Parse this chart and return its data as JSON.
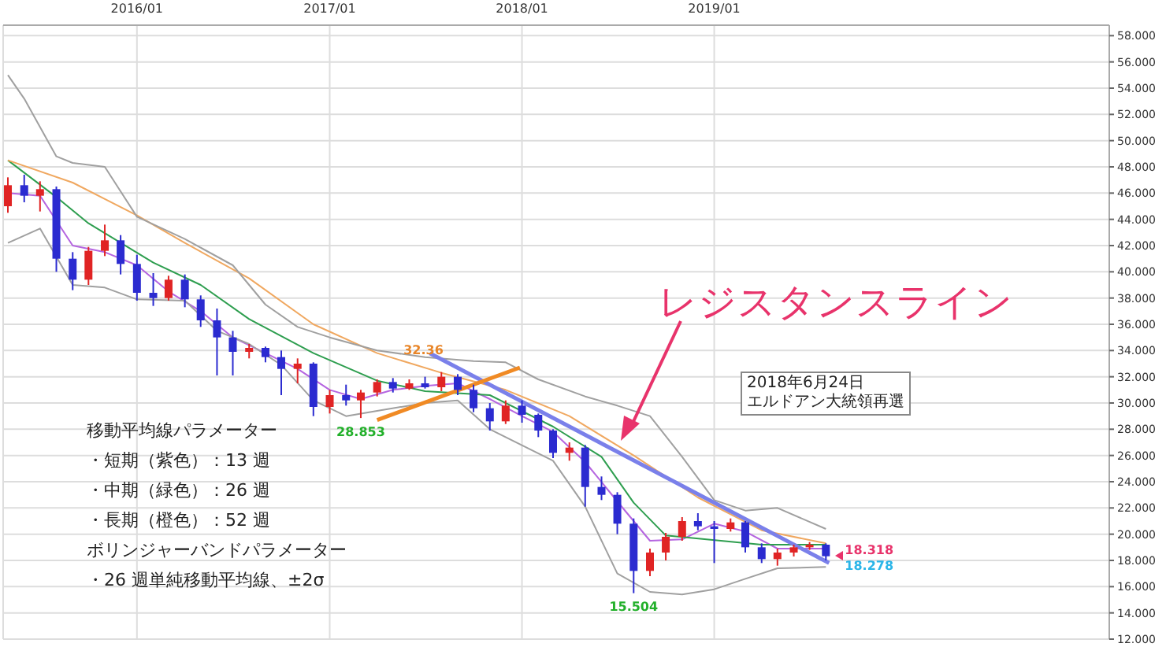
{
  "chart_data": {
    "type": "candlestick",
    "x": [
      "2015-05",
      "2015-06",
      "2015-07",
      "2015-08",
      "2015-09",
      "2015-10",
      "2015-11",
      "2015-12",
      "2016-01",
      "2016-02",
      "2016-03",
      "2016-04",
      "2016-05",
      "2016-06",
      "2016-07",
      "2016-08",
      "2016-09",
      "2016-10",
      "2016-11",
      "2016-12",
      "2017-01",
      "2017-02",
      "2017-03",
      "2017-04",
      "2017-05",
      "2017-06",
      "2017-07",
      "2017-08",
      "2017-09",
      "2017-10",
      "2017-11",
      "2017-12",
      "2018-01",
      "2018-02",
      "2018-03",
      "2018-04",
      "2018-05",
      "2018-06",
      "2018-07",
      "2018-08",
      "2018-09",
      "2018-10",
      "2018-11",
      "2018-12",
      "2019-01",
      "2019-02",
      "2019-03",
      "2019-04",
      "2019-05",
      "2019-06",
      "2019-07",
      "2019-08"
    ],
    "ohlc": [
      [
        45.0,
        47.2,
        44.5,
        46.6
      ],
      [
        46.6,
        47.4,
        45.3,
        45.8
      ],
      [
        45.8,
        46.9,
        44.6,
        46.3
      ],
      [
        46.3,
        46.5,
        40.0,
        41.0
      ],
      [
        41.0,
        41.5,
        38.6,
        39.4
      ],
      [
        39.4,
        41.9,
        39.0,
        41.6
      ],
      [
        41.6,
        43.6,
        41.2,
        42.4
      ],
      [
        42.4,
        42.8,
        39.8,
        40.6
      ],
      [
        40.6,
        41.3,
        37.8,
        38.4
      ],
      [
        38.4,
        39.9,
        37.4,
        38.0
      ],
      [
        38.0,
        39.7,
        37.8,
        39.4
      ],
      [
        39.4,
        39.8,
        37.3,
        37.9
      ],
      [
        37.9,
        38.2,
        35.8,
        36.3
      ],
      [
        36.3,
        37.2,
        32.1,
        35.0
      ],
      [
        35.0,
        35.5,
        32.1,
        33.9
      ],
      [
        33.9,
        34.5,
        33.4,
        34.2
      ],
      [
        34.2,
        34.3,
        33.1,
        33.5
      ],
      [
        33.5,
        34.0,
        30.6,
        32.6
      ],
      [
        32.6,
        33.4,
        31.5,
        33.0
      ],
      [
        33.0,
        33.1,
        29.0,
        29.7
      ],
      [
        29.7,
        31.0,
        29.2,
        30.6
      ],
      [
        30.6,
        31.4,
        29.8,
        30.2
      ],
      [
        30.2,
        31.0,
        28.853,
        30.8
      ],
      [
        30.8,
        31.8,
        30.5,
        31.6
      ],
      [
        31.6,
        31.9,
        30.8,
        31.1
      ],
      [
        31.1,
        31.8,
        31.0,
        31.5
      ],
      [
        31.5,
        32.0,
        31.1,
        31.2
      ],
      [
        31.2,
        32.36,
        30.9,
        32.0
      ],
      [
        32.0,
        32.2,
        30.6,
        31.0
      ],
      [
        31.0,
        31.4,
        29.3,
        29.6
      ],
      [
        29.6,
        30.0,
        27.9,
        28.6
      ],
      [
        28.6,
        30.2,
        28.4,
        29.8
      ],
      [
        29.8,
        30.2,
        28.5,
        29.1
      ],
      [
        29.1,
        29.2,
        27.4,
        27.9
      ],
      [
        27.9,
        28.0,
        25.8,
        26.2
      ],
      [
        26.2,
        27.0,
        25.6,
        26.6
      ],
      [
        26.6,
        26.8,
        22.1,
        23.6
      ],
      [
        23.6,
        24.4,
        22.6,
        23.0
      ],
      [
        23.0,
        23.2,
        20.0,
        20.8
      ],
      [
        20.8,
        21.2,
        15.504,
        17.2
      ],
      [
        17.2,
        18.9,
        16.8,
        18.6
      ],
      [
        18.6,
        20.1,
        18.0,
        19.8
      ],
      [
        19.8,
        21.3,
        19.5,
        21.0
      ],
      [
        21.0,
        21.6,
        20.3,
        20.6
      ],
      [
        20.6,
        21.0,
        17.8,
        20.4
      ],
      [
        20.4,
        21.2,
        20.2,
        20.9
      ],
      [
        20.9,
        21.0,
        18.6,
        19.0
      ],
      [
        19.0,
        19.3,
        17.8,
        18.1
      ],
      [
        18.1,
        18.9,
        17.6,
        18.6
      ],
      [
        18.6,
        19.2,
        18.3,
        19.0
      ],
      [
        19.0,
        19.4,
        18.8,
        19.2
      ],
      [
        19.2,
        19.3,
        18.0,
        18.318
      ]
    ],
    "colors": [
      "#e02424",
      "#2b2bd0",
      "#e02424",
      "#2b2bd0",
      "#2b2bd0",
      "#e02424",
      "#e02424",
      "#2b2bd0",
      "#2b2bd0",
      "#2b2bd0",
      "#e02424",
      "#2b2bd0",
      "#2b2bd0",
      "#2b2bd0",
      "#2b2bd0",
      "#e02424",
      "#2b2bd0",
      "#2b2bd0",
      "#e02424",
      "#2b2bd0",
      "#e02424",
      "#2b2bd0",
      "#e02424",
      "#e02424",
      "#2b2bd0",
      "#e02424",
      "#2b2bd0",
      "#e02424",
      "#2b2bd0",
      "#2b2bd0",
      "#2b2bd0",
      "#e02424",
      "#2b2bd0",
      "#2b2bd0",
      "#2b2bd0",
      "#e02424",
      "#2b2bd0",
      "#2b2bd0",
      "#2b2bd0",
      "#2b2bd0",
      "#e02424",
      "#e02424",
      "#e02424",
      "#2b2bd0",
      "#2b2bd0",
      "#e02424",
      "#2b2bd0",
      "#2b2bd0",
      "#e02424",
      "#e02424",
      "#e02424",
      "#2b2bd0"
    ],
    "series": [
      {
        "type": "line",
        "color": "#b565e0",
        "x": [
          "2015-05",
          "2015-07",
          "2015-09",
          "2015-11",
          "2016-01",
          "2016-03",
          "2016-05",
          "2016-07",
          "2016-09",
          "2016-11",
          "2017-01",
          "2017-03",
          "2017-05",
          "2017-07",
          "2017-09",
          "2017-11",
          "2018-01",
          "2018-03",
          "2018-05",
          "2018-07",
          "2018-09",
          "2018-11",
          "2019-01",
          "2019-03",
          "2019-05",
          "2019-08"
        ],
        "values": [
          46.0,
          45.8,
          42.0,
          41.5,
          40.5,
          38.5,
          37.0,
          35.0,
          33.8,
          32.6,
          31.0,
          30.3,
          31.0,
          31.3,
          31.5,
          30.3,
          29.0,
          27.8,
          25.5,
          22.5,
          19.5,
          19.6,
          20.8,
          20.2,
          18.9,
          18.9
        ]
      },
      {
        "type": "line",
        "color": "#2e9e4f",
        "x": [
          "2015-05",
          "2015-08",
          "2015-10",
          "2016-02",
          "2016-05",
          "2016-08",
          "2016-12",
          "2017-04",
          "2017-07",
          "2017-11",
          "2018-03",
          "2018-06",
          "2018-08",
          "2018-10",
          "2019-04",
          "2019-08"
        ],
        "values": [
          48.5,
          45.7,
          43.7,
          40.7,
          39.0,
          36.4,
          33.8,
          31.7,
          30.9,
          30.6,
          28.2,
          25.9,
          22.4,
          19.9,
          19.2,
          19.2
        ]
      },
      {
        "type": "line",
        "color": "#f0a860",
        "x": [
          "2015-05",
          "2015-09",
          "2016-01",
          "2016-04",
          "2016-08",
          "2016-12",
          "2017-04",
          "2017-08",
          "2017-12",
          "2018-04",
          "2018-08",
          "2018-12",
          "2019-04",
          "2019-08"
        ],
        "values": [
          48.5,
          46.8,
          44.3,
          42.2,
          39.5,
          36.0,
          33.8,
          32.3,
          31.0,
          29.0,
          26.0,
          22.8,
          20.3,
          19.3
        ]
      },
      {
        "type": "line",
        "color": "#a0a0a0",
        "x": [
          "2015-05",
          "2015-06",
          "2015-08",
          "2015-09",
          "2015-11",
          "2016-01",
          "2016-04",
          "2016-07",
          "2016-09",
          "2016-11",
          "2017-01",
          "2017-04",
          "2017-07",
          "2017-10",
          "2017-12",
          "2018-02",
          "2018-05",
          "2018-07",
          "2018-09",
          "2018-11",
          "2019-01",
          "2019-03",
          "2019-05",
          "2019-08"
        ],
        "values": [
          55.0,
          53.2,
          48.8,
          48.3,
          48.0,
          44.2,
          42.5,
          40.5,
          37.5,
          35.8,
          35.0,
          34.0,
          33.5,
          33.2,
          33.1,
          31.8,
          30.5,
          29.8,
          29.0,
          25.9,
          22.6,
          21.8,
          22.0,
          20.4
        ]
      },
      {
        "type": "line",
        "color": "#a0a0a0",
        "x": [
          "2015-05",
          "2015-07",
          "2015-09",
          "2015-11",
          "2016-01",
          "2016-04",
          "2016-06",
          "2016-08",
          "2016-10",
          "2016-12",
          "2017-02",
          "2017-04",
          "2017-07",
          "2017-09",
          "2017-11",
          "2018-03",
          "2018-05",
          "2018-07",
          "2018-09",
          "2018-11",
          "2019-01",
          "2019-03",
          "2019-05",
          "2019-08"
        ],
        "values": [
          42.2,
          43.3,
          39.0,
          38.8,
          37.9,
          37.8,
          35.5,
          34.5,
          32.9,
          30.2,
          29.0,
          29.4,
          30.0,
          30.2,
          28.0,
          25.6,
          22.1,
          17.0,
          15.6,
          15.4,
          15.8,
          16.6,
          17.4,
          17.5
        ]
      },
      {
        "type": "line",
        "color": "#7a80ea",
        "x": [
          "2017-07-10",
          "2019-08-07"
        ],
        "values": [
          33.8,
          17.8
        ]
      },
      {
        "type": "line",
        "color": "#f08a24",
        "x": [
          "2017-04-01",
          "2017-12-28"
        ],
        "values": [
          28.7,
          32.7
        ]
      }
    ],
    "xlim": [
      "2015-04-22",
      "2021-01-20"
    ],
    "xticks": [
      {
        "value": "2016-01-01",
        "label": "2016/01"
      },
      {
        "value": "2017-01-01",
        "label": "2017/01"
      },
      {
        "value": "2018-01-01",
        "label": "2018/01"
      },
      {
        "value": "2019-01-01",
        "label": "2019/01"
      }
    ],
    "ylim": [
      12,
      58.8
    ],
    "yticks": [
      {
        "value": 12,
        "label": "12.000"
      },
      {
        "value": 14,
        "label": "14.000"
      },
      {
        "value": 16,
        "label": "16.000"
      },
      {
        "value": 18,
        "label": "18.000"
      },
      {
        "value": 20,
        "label": "20.000"
      },
      {
        "value": 22,
        "label": "22.000"
      },
      {
        "value": 24,
        "label": "24.000"
      },
      {
        "value": 26,
        "label": "26.000"
      },
      {
        "value": 28,
        "label": "28.000"
      },
      {
        "value": 30,
        "label": "30.000"
      },
      {
        "value": 32,
        "label": "32.000"
      },
      {
        "value": 34,
        "label": "34.000"
      },
      {
        "value": 36,
        "label": "36.000"
      },
      {
        "value": 38,
        "label": "38.000"
      },
      {
        "value": 40,
        "label": "40.000"
      },
      {
        "value": 42,
        "label": "42.000"
      },
      {
        "value": 44,
        "label": "44.000"
      },
      {
        "value": 46,
        "label": "46.000"
      },
      {
        "value": 48,
        "label": "48.000"
      },
      {
        "value": 50,
        "label": "50.000"
      },
      {
        "value": 52,
        "label": "52.000"
      },
      {
        "value": 54,
        "label": "54.000"
      },
      {
        "value": 56,
        "label": "56.000"
      },
      {
        "value": 58,
        "label": "58.000"
      }
    ],
    "grid": true,
    "annotations": [
      "移動平均線パラメーター",
      "・短期（紫色）：13 週",
      "・中期（緑色）：26 週",
      "・長期（橙色）：52 週",
      "ボリンジャーバンドパラメーター",
      "・26 週単純移動平均線、±2σ",
      "レジスタンスライン",
      "2018年6月24日",
      "エルドアン大統領再選",
      {
        "text": "28.853",
        "x": "2017-03",
        "y": 28.853
      },
      {
        "text": "32.36",
        "x": "2017-08",
        "y": 32.36
      },
      {
        "text": "15.504",
        "x": "2018-08",
        "y": 15.504
      },
      {
        "text": "18.318",
        "x": "2019-08",
        "y": 18.318
      },
      {
        "text": "18.278",
        "x": "2019-08",
        "y": 18.278
      }
    ]
  }
}
